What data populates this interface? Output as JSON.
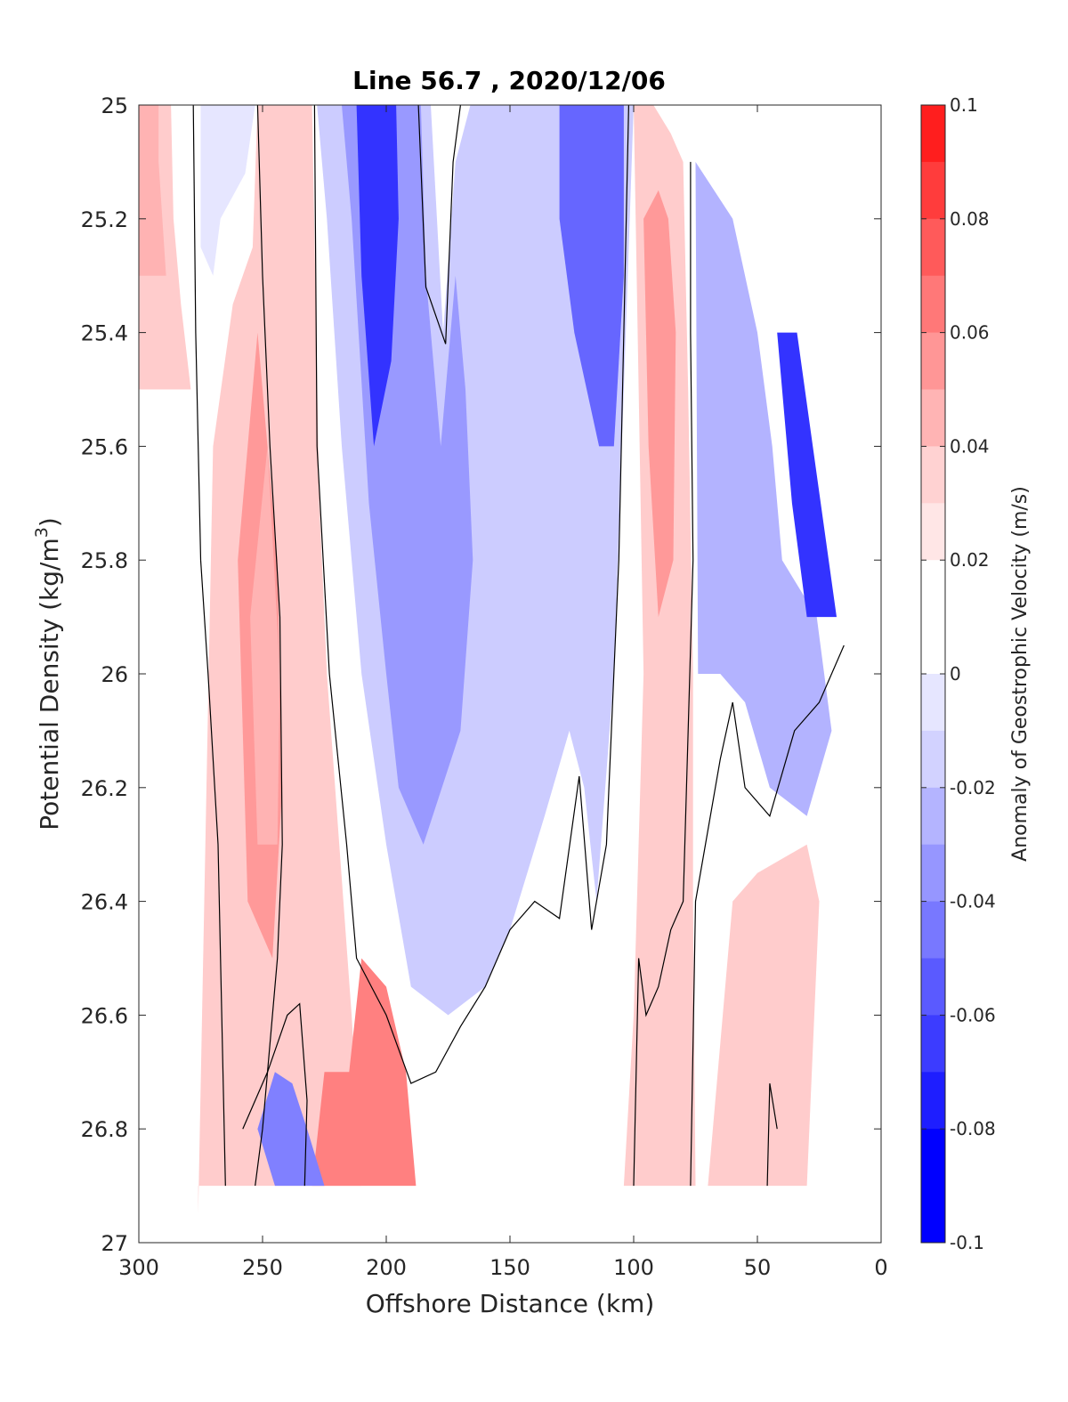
{
  "chart_data": {
    "type": "heatmap",
    "title": "Line 56.7 , 2020/12/06",
    "xlabel": "Offshore Distance (km)",
    "ylabel_main": "Potential Density (kg/m",
    "ylabel_sup": "3",
    "ylabel_close": ")",
    "xlim": [
      300,
      0
    ],
    "ylim": [
      25,
      27
    ],
    "x_direction": "reversed",
    "y_direction": "reversed",
    "xticks": [
      300,
      250,
      200,
      150,
      100,
      50,
      0
    ],
    "xtick_labels": [
      "300",
      "250",
      "200",
      "150",
      "100",
      "50",
      "0"
    ],
    "yticks": [
      25,
      25.2,
      25.4,
      25.6,
      25.8,
      26,
      26.2,
      26.4,
      26.6,
      26.8,
      27
    ],
    "ytick_labels": [
      "25",
      "25.2",
      "25.4",
      "25.6",
      "25.8",
      "26",
      "26.2",
      "26.4",
      "26.6",
      "26.8",
      "27"
    ],
    "grid": false,
    "colorbar": {
      "label": "Anomaly of Geostrophic Velocity (m/s)",
      "ticks": [
        0.1,
        0.08,
        0.06,
        0.04,
        0.02,
        0,
        -0.02,
        -0.04,
        -0.06,
        -0.08,
        -0.1
      ],
      "tick_labels": [
        "0.1",
        "0.08",
        "0.06",
        "0.04",
        "0.02",
        "0",
        "-0.02",
        "-0.04",
        "-0.06",
        "-0.08",
        "-0.1"
      ],
      "colors_top_to_bottom": [
        "#ff1e1e",
        "#ff3c3c",
        "#ff5a5a",
        "#ff7878",
        "#ff9696",
        "#ffb4b4",
        "#ffd2d2",
        "#ffe6e6",
        "#ffffff",
        "#ffffff",
        "#e6e6ff",
        "#d2d2ff",
        "#b4b4ff",
        "#9696ff",
        "#7878ff",
        "#5a5aff",
        "#3c3cff",
        "#1e1eff",
        "#0000ff",
        "#0000ff"
      ]
    },
    "value_unit": "m/s",
    "regions": [
      {
        "name": "far-offshore-surface-positive",
        "value": 0.02,
        "polygon": [
          [
            300,
            25
          ],
          [
            287,
            25
          ],
          [
            286,
            25.2
          ],
          [
            283,
            25.35
          ],
          [
            279,
            25.5
          ],
          [
            300,
            25.5
          ]
        ]
      },
      {
        "name": "far-offshore-inner-positive",
        "value": 0.03,
        "polygon": [
          [
            300,
            25
          ],
          [
            292,
            25
          ],
          [
            292,
            25.1
          ],
          [
            289,
            25.3
          ],
          [
            300,
            25.3
          ]
        ]
      },
      {
        "name": "offshore-surface-negative",
        "value": -0.01,
        "polygon": [
          [
            275,
            25
          ],
          [
            253,
            25
          ],
          [
            257,
            25.12
          ],
          [
            267,
            25.2
          ],
          [
            270,
            25.3
          ],
          [
            275,
            25.25
          ]
        ]
      },
      {
        "name": "positive-band-250km",
        "value": 0.02,
        "polygon": [
          [
            276,
            26.95
          ],
          [
            270,
            25.6
          ],
          [
            262,
            25.35
          ],
          [
            254,
            25.25
          ],
          [
            252,
            25
          ],
          [
            230,
            25
          ],
          [
            227,
            25.7
          ],
          [
            224,
            26.0
          ],
          [
            219,
            26.3
          ],
          [
            214,
            26.6
          ],
          [
            210,
            26.9
          ],
          [
            276,
            26.9
          ]
        ]
      },
      {
        "name": "positive-core-250km",
        "value": 0.04,
        "polygon": [
          [
            256,
            26.4
          ],
          [
            260,
            25.8
          ],
          [
            252,
            25.4
          ],
          [
            244,
            25.8
          ],
          [
            242,
            26.2
          ],
          [
            246,
            26.5
          ]
        ]
      },
      {
        "name": "positive-inner-250km",
        "value": 0.03,
        "polygon": [
          [
            252,
            26.3
          ],
          [
            255,
            25.9
          ],
          [
            248,
            25.6
          ],
          [
            243,
            26.0
          ],
          [
            244,
            26.3
          ]
        ]
      },
      {
        "name": "main-negative-band",
        "value": -0.02,
        "polygon": [
          [
            228,
            25
          ],
          [
            182,
            25
          ],
          [
            177,
            25.4
          ],
          [
            172,
            25.1
          ],
          [
            166,
            25
          ],
          [
            100,
            25
          ],
          [
            104,
            25.5
          ],
          [
            108,
            26.0
          ],
          [
            115,
            26.4
          ],
          [
            120,
            26.2
          ],
          [
            126,
            26.1
          ],
          [
            136,
            26.25
          ],
          [
            150,
            26.45
          ],
          [
            160,
            26.55
          ],
          [
            175,
            26.6
          ],
          [
            190,
            26.55
          ],
          [
            200,
            26.3
          ],
          [
            210,
            26.0
          ],
          [
            218,
            25.6
          ],
          [
            224,
            25.2
          ]
        ]
      },
      {
        "name": "main-negative-core",
        "value": -0.04,
        "polygon": [
          [
            218,
            25
          ],
          [
            186,
            25
          ],
          [
            184,
            25.3
          ],
          [
            178,
            25.6
          ],
          [
            172,
            25.3
          ],
          [
            168,
            25.5
          ],
          [
            165,
            25.8
          ],
          [
            170,
            26.1
          ],
          [
            185,
            26.3
          ],
          [
            195,
            26.2
          ],
          [
            200,
            26.0
          ],
          [
            207,
            25.7
          ],
          [
            214,
            25.2
          ]
        ]
      },
      {
        "name": "negative-core-200km",
        "value": -0.08,
        "polygon": [
          [
            212,
            25
          ],
          [
            196,
            25
          ],
          [
            195,
            25.2
          ],
          [
            198,
            25.45
          ],
          [
            205,
            25.6
          ],
          [
            210,
            25.3
          ]
        ]
      },
      {
        "name": "negative-core-120km",
        "value": -0.06,
        "polygon": [
          [
            130,
            25
          ],
          [
            104,
            25
          ],
          [
            104,
            25.3
          ],
          [
            108,
            25.6
          ],
          [
            114,
            25.6
          ],
          [
            124,
            25.4
          ],
          [
            130,
            25.2
          ]
        ]
      },
      {
        "name": "positive-band-90km",
        "value": 0.02,
        "polygon": [
          [
            100,
            25
          ],
          [
            98,
            25.5
          ],
          [
            96,
            26.0
          ],
          [
            100,
            26.6
          ],
          [
            104,
            26.9
          ],
          [
            75,
            26.9
          ],
          [
            76,
            26.4
          ],
          [
            76,
            26.0
          ],
          [
            78,
            25.5
          ],
          [
            80,
            25.1
          ],
          [
            85,
            25.05
          ],
          [
            92,
            25
          ]
        ]
      },
      {
        "name": "positive-core-90km",
        "value": 0.04,
        "polygon": [
          [
            96,
            25.2
          ],
          [
            94,
            25.6
          ],
          [
            90,
            25.9
          ],
          [
            84,
            25.8
          ],
          [
            83,
            25.4
          ],
          [
            86,
            25.2
          ],
          [
            90,
            25.15
          ]
        ]
      },
      {
        "name": "nearshore-negative",
        "value": -0.03,
        "polygon": [
          [
            75,
            25.1
          ],
          [
            60,
            25.2
          ],
          [
            50,
            25.4
          ],
          [
            44,
            25.6
          ],
          [
            40,
            25.8
          ],
          [
            26,
            25.9
          ],
          [
            20,
            26.1
          ],
          [
            30,
            26.25
          ],
          [
            45,
            26.2
          ],
          [
            55,
            26.05
          ],
          [
            65,
            26.0
          ],
          [
            74,
            26.0
          ]
        ]
      },
      {
        "name": "nearshore-negative-core",
        "value": -0.08,
        "polygon": [
          [
            42,
            25.4
          ],
          [
            36,
            25.7
          ],
          [
            30,
            25.9
          ],
          [
            18,
            25.9
          ],
          [
            26,
            25.65
          ],
          [
            34,
            25.4
          ]
        ]
      },
      {
        "name": "deep-positive-200km",
        "value": 0.05,
        "polygon": [
          [
            215,
            26.7
          ],
          [
            210,
            26.5
          ],
          [
            200,
            26.55
          ],
          [
            192,
            26.7
          ],
          [
            188,
            26.9
          ],
          [
            230,
            26.9
          ],
          [
            225,
            26.7
          ]
        ]
      },
      {
        "name": "deep-negative-240km",
        "value": -0.05,
        "polygon": [
          [
            252,
            26.8
          ],
          [
            245,
            26.7
          ],
          [
            238,
            26.72
          ],
          [
            232,
            26.8
          ],
          [
            225,
            26.9
          ],
          [
            245,
            26.9
          ]
        ]
      },
      {
        "name": "deep-positive-nearshore",
        "value": 0.02,
        "polygon": [
          [
            70,
            26.9
          ],
          [
            60,
            26.4
          ],
          [
            50,
            26.35
          ],
          [
            30,
            26.3
          ],
          [
            25,
            26.4
          ],
          [
            30,
            26.9
          ]
        ]
      }
    ],
    "zero_contours": [
      [
        [
          278,
          25
        ],
        [
          277,
          25.4
        ],
        [
          275,
          25.8
        ],
        [
          272,
          26.0
        ],
        [
          268,
          26.3
        ],
        [
          265,
          26.9
        ]
      ],
      [
        [
          252,
          25
        ],
        [
          250,
          25.3
        ],
        [
          247,
          25.6
        ],
        [
          243,
          25.9
        ],
        [
          242,
          26.3
        ],
        [
          244,
          26.5
        ],
        [
          250,
          26.8
        ],
        [
          253,
          26.9
        ]
      ],
      [
        [
          233,
          26.9
        ],
        [
          232,
          26.75
        ],
        [
          235,
          26.58
        ],
        [
          240,
          26.6
        ],
        [
          248,
          26.7
        ],
        [
          258,
          26.8
        ]
      ],
      [
        [
          229,
          25
        ],
        [
          228,
          25.6
        ],
        [
          223,
          26.0
        ],
        [
          216,
          26.3
        ],
        [
          212,
          26.5
        ],
        [
          200,
          26.6
        ],
        [
          190,
          26.72
        ],
        [
          180,
          26.7
        ],
        [
          170,
          26.62
        ],
        [
          160,
          26.55
        ],
        [
          150,
          26.45
        ],
        [
          140,
          26.4
        ],
        [
          130,
          26.43
        ],
        [
          122,
          26.18
        ],
        [
          117,
          26.45
        ],
        [
          111,
          26.3
        ],
        [
          106,
          25.8
        ],
        [
          104,
          25.4
        ],
        [
          102,
          25
        ]
      ],
      [
        [
          187,
          25
        ],
        [
          184,
          25.32
        ],
        [
          176,
          25.42
        ],
        [
          173,
          25.1
        ],
        [
          170,
          25
        ]
      ],
      [
        [
          100,
          26.9
        ],
        [
          98,
          26.5
        ],
        [
          95,
          26.6
        ],
        [
          90,
          26.55
        ],
        [
          85,
          26.45
        ],
        [
          80,
          26.4
        ],
        [
          78,
          26.1
        ],
        [
          76,
          25.8
        ],
        [
          77,
          25.4
        ],
        [
          77,
          25.1
        ]
      ],
      [
        [
          77,
          26.9
        ],
        [
          75,
          26.4
        ],
        [
          65,
          26.15
        ],
        [
          60,
          26.05
        ],
        [
          55,
          26.2
        ],
        [
          45,
          26.25
        ],
        [
          35,
          26.1
        ],
        [
          25,
          26.05
        ],
        [
          15,
          25.95
        ]
      ],
      [
        [
          42,
          26.8
        ],
        [
          45,
          26.72
        ],
        [
          46,
          26.9
        ]
      ]
    ]
  }
}
